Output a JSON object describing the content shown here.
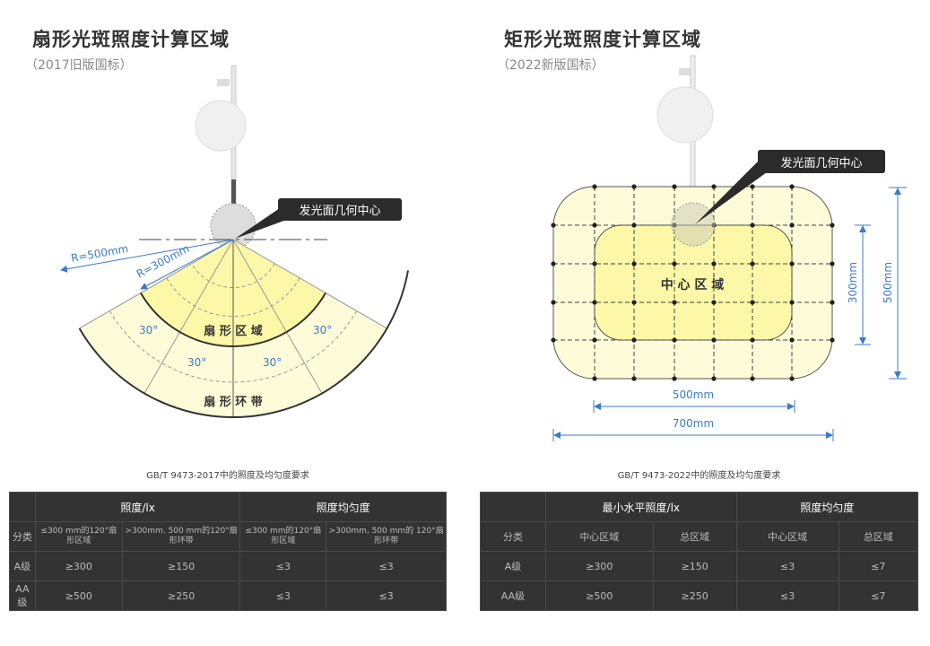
{
  "left": {
    "title": "扇形光斑照度计算区域",
    "subtitle": "（2017旧版国标）",
    "callout": "发光面几何中心",
    "r_outer": "R=500mm",
    "r_inner": "R=300mm",
    "angle_label": "30°",
    "zone_inner": "扇 形 区 域",
    "zone_outer": "扇 形 环 带",
    "table_caption": "GB/T 9473-2017中的照度及均匀度要求",
    "table": {
      "group_headers": [
        "照度/lx",
        "照度均匀度"
      ],
      "columns": [
        "分类",
        "≤300 mm的120°扇形区域",
        ">300mm. 500 mm的120°扇形环带",
        "≤300 mm的120°扇形区域",
        ">300mm, 500 mm的 120°扇形环带"
      ],
      "rows": [
        [
          "A级",
          "≥300",
          "≥150",
          "≤3",
          "≤3"
        ],
        [
          "AA级",
          "≥500",
          "≥250",
          "≤3",
          "≤3"
        ]
      ]
    }
  },
  "right": {
    "title": "矩形光斑照度计算区域",
    "subtitle": "（2022新版国标）",
    "callout": "发光面几何中心",
    "zone_center": "中 心 区 域",
    "dim_500_h": "500mm",
    "dim_700_h": "700mm",
    "dim_300_v": "300mm",
    "dim_500_v": "500mm",
    "table_caption": "GB/T 9473-2022中的照度及均匀度要求",
    "table": {
      "group_headers": [
        "最小水平照度/lx",
        "照度均匀度"
      ],
      "columns": [
        "分类",
        "中心区域",
        "总区域",
        "中心区域",
        "总区域"
      ],
      "rows": [
        [
          "A级",
          "≥300",
          "≥150",
          "≤3",
          "≤7"
        ],
        [
          "AA级",
          "≥500",
          "≥250",
          "≤3",
          "≤7"
        ]
      ]
    }
  },
  "colors": {
    "accent_blue": "#3a7bc8",
    "yellow_inner": "#fdf8a8",
    "yellow_outer": "#fefbd8",
    "table_bg": "#333333"
  }
}
